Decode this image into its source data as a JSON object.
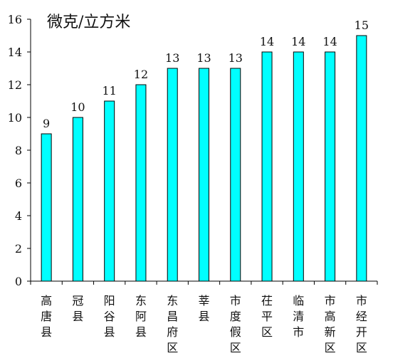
{
  "chart_data": {
    "type": "bar",
    "title": "",
    "unit_label": "微克/立方米",
    "xlabel": "",
    "ylabel": "",
    "ylim": [
      0,
      16
    ],
    "yticks": [
      0,
      2,
      4,
      6,
      8,
      10,
      12,
      14,
      16
    ],
    "grid": false,
    "legend": "none",
    "categories": [
      "高唐县",
      "冠县",
      "阳谷县",
      "东阿县",
      "东昌府区",
      "莘县",
      "市度假区",
      "茌平区",
      "临清市",
      "市高新区",
      "市经开区"
    ],
    "values": [
      9,
      10,
      11,
      12,
      13,
      13,
      13,
      14,
      14,
      14,
      15
    ],
    "bar_color": "#00FFFF",
    "bar_edge_color": "#000000"
  }
}
